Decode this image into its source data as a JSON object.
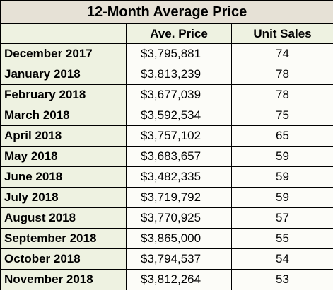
{
  "title": "12-Month Average Price",
  "columns": [
    "",
    "Ave. Price",
    "Unit Sales"
  ],
  "rows": [
    {
      "month": "December 2017",
      "price": "$3,795,881",
      "units": "74"
    },
    {
      "month": "January 2018",
      "price": "$3,813,239",
      "units": "78"
    },
    {
      "month": "February 2018",
      "price": "$3,677,039",
      "units": "78"
    },
    {
      "month": "March 2018",
      "price": "$3,592,534",
      "units": "75"
    },
    {
      "month": "April 2018",
      "price": "$3,757,102",
      "units": "65"
    },
    {
      "month": "May 2018",
      "price": "$3,683,657",
      "units": "59"
    },
    {
      "month": "June 2018",
      "price": "$3,482,335",
      "units": "59"
    },
    {
      "month": "July 2018",
      "price": "$3,719,792",
      "units": "59"
    },
    {
      "month": "August 2018",
      "price": "$3,770,925",
      "units": "57"
    },
    {
      "month": "September 2018",
      "price": "$3,865,000",
      "units": "55"
    },
    {
      "month": "October 2018",
      "price": "$3,794,537",
      "units": "54"
    },
    {
      "month": "November 2018",
      "price": "$3,812,264",
      "units": "53"
    }
  ],
  "colors": {
    "title_bg": "#e6e1d6",
    "header_bg": "#eef2e1",
    "cell_bg": "#fcfcf8",
    "border": "#000000"
  }
}
